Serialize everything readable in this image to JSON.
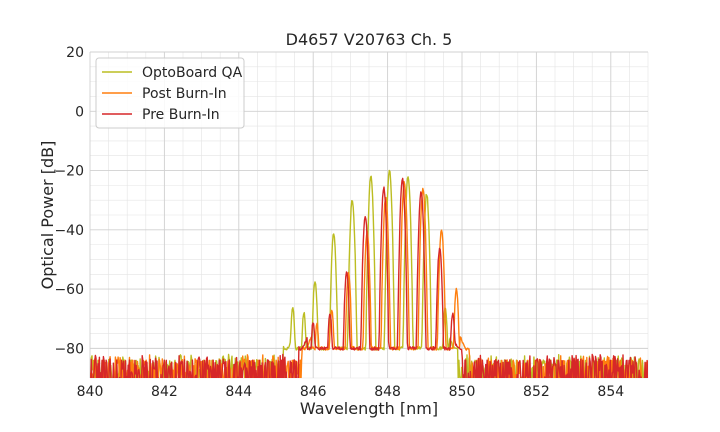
{
  "chart_data": {
    "type": "line",
    "title": "D4657 V20763 Ch. 5",
    "xlabel": "Wavelength [nm]",
    "ylabel": "Optical Power [dB]",
    "xlim": [
      840,
      855
    ],
    "ylim": [
      -90,
      20
    ],
    "xticks": [
      840,
      842,
      844,
      846,
      848,
      850,
      852,
      854
    ],
    "yticks": [
      20,
      0,
      -20,
      -40,
      -60,
      -80
    ],
    "x_tick_labels": [
      "840",
      "842",
      "844",
      "846",
      "848",
      "850",
      "852",
      "854"
    ],
    "y_tick_labels": [
      "20",
      "0",
      "−20",
      "−40",
      "−60",
      "−80"
    ],
    "grid": true,
    "legend": "top-left",
    "noise_floor": -80,
    "series": [
      {
        "name": "OptoBoard QA",
        "color": "#bcbd22",
        "peaks": [
          {
            "x": 845.45,
            "y": -66
          },
          {
            "x": 845.75,
            "y": -68
          },
          {
            "x": 846.05,
            "y": -57
          },
          {
            "x": 846.55,
            "y": -41
          },
          {
            "x": 847.05,
            "y": -30
          },
          {
            "x": 847.55,
            "y": -22
          },
          {
            "x": 848.05,
            "y": -20
          },
          {
            "x": 848.55,
            "y": -22
          },
          {
            "x": 849.05,
            "y": -28
          },
          {
            "x": 849.55,
            "y": -66
          }
        ],
        "band": [
          845.2,
          849.9
        ]
      },
      {
        "name": "Post Burn-In",
        "color": "#ff7f0e",
        "peaks": [
          {
            "x": 846.1,
            "y": -72
          },
          {
            "x": 846.5,
            "y": -67
          },
          {
            "x": 846.95,
            "y": -55
          },
          {
            "x": 847.45,
            "y": -41
          },
          {
            "x": 847.95,
            "y": -29
          },
          {
            "x": 848.45,
            "y": -24
          },
          {
            "x": 848.95,
            "y": -26
          },
          {
            "x": 849.45,
            "y": -40
          },
          {
            "x": 849.85,
            "y": -60
          }
        ],
        "band": [
          845.7,
          850.2
        ]
      },
      {
        "name": "Pre Burn-In",
        "color": "#d62728",
        "peaks": [
          {
            "x": 846.0,
            "y": -71
          },
          {
            "x": 846.45,
            "y": -68
          },
          {
            "x": 846.9,
            "y": -54
          },
          {
            "x": 847.4,
            "y": -35
          },
          {
            "x": 847.9,
            "y": -26
          },
          {
            "x": 848.4,
            "y": -23
          },
          {
            "x": 848.9,
            "y": -27
          },
          {
            "x": 849.4,
            "y": -46
          },
          {
            "x": 849.75,
            "y": -68
          }
        ],
        "band": [
          845.6,
          850.0
        ]
      }
    ]
  }
}
